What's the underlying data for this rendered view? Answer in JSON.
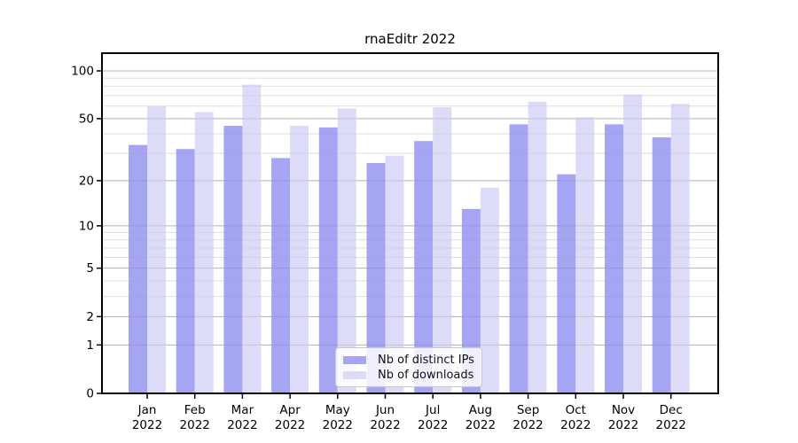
{
  "chart_data": {
    "type": "bar",
    "title": "rnaEditr 2022",
    "year": "2022",
    "categories": [
      "Jan",
      "Feb",
      "Mar",
      "Apr",
      "May",
      "Jun",
      "Jul",
      "Aug",
      "Sep",
      "Oct",
      "Nov",
      "Dec"
    ],
    "series": [
      {
        "name": "Nb of distinct IPs",
        "color": "#a5a5f3",
        "values": [
          34,
          32,
          45,
          28,
          44,
          26,
          36,
          13,
          46,
          22,
          46,
          38
        ]
      },
      {
        "name": "Nb of downloads",
        "color": "#dcdcf8",
        "values": [
          60,
          55,
          82,
          45,
          58,
          29,
          59,
          18,
          64,
          51,
          71,
          62
        ]
      }
    ],
    "yscale": "log1p",
    "yticks": [
      0,
      1,
      2,
      5,
      10,
      20,
      50,
      100
    ],
    "minor_gridlines": [
      3,
      4,
      6,
      7,
      8,
      9,
      30,
      40,
      60,
      70,
      80,
      90
    ],
    "ylim": [
      0,
      130
    ],
    "xlabel": "",
    "ylabel": "",
    "grid": true,
    "legend_position": "bottom-center",
    "colors": {
      "axis": "#000000",
      "major_grid": "#c9c9c9",
      "minor_grid": "#ececec",
      "background": "#ffffff"
    }
  }
}
